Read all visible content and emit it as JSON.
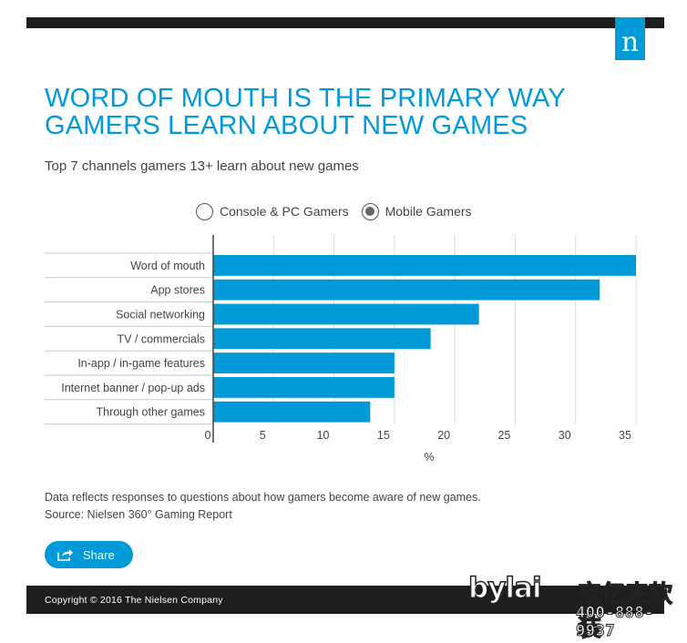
{
  "brand": {
    "logo_letter": "n",
    "accent": "#009ad8",
    "bar_color": "#009ad8"
  },
  "header": {
    "title_line1": "WORD OF MOUTH IS THE PRIMARY WAY",
    "title_line2": "GAMERS LEARN ABOUT NEW GAMES",
    "subtitle": "Top 7 channels gamers 13+ learn about new games"
  },
  "legend": {
    "options": [
      {
        "label": "Console & PC Gamers",
        "selected": false
      },
      {
        "label": "Mobile Gamers",
        "selected": true
      }
    ]
  },
  "chart_data": {
    "type": "bar",
    "orientation": "horizontal",
    "series": [
      {
        "name": "Mobile Gamers",
        "values": [
          35,
          32,
          22,
          18,
          15,
          15,
          13
        ]
      }
    ],
    "categories": [
      "Word of mouth",
      "App stores",
      "Social networking",
      "TV / commercials",
      "In-app / in-game features",
      "Internet banner / pop-up ads",
      "Through other games"
    ],
    "xlabel": "%",
    "xlim": [
      0,
      35
    ],
    "xticks": [
      "0",
      "5",
      "10",
      "15",
      "20",
      "25",
      "30",
      "35"
    ],
    "grid": true
  },
  "notes": {
    "line1": "Data reflects responses to questions about how gamers become aware of new games.",
    "line2": "Source: Nielsen 360° Gaming Report"
  },
  "share": {
    "label": "Share"
  },
  "footer": {
    "copyright": "Copyright © 2016 The Nielsen Company"
  },
  "watermark": {
    "brand": "bylai",
    "cn": "宝亿来软装",
    "phone": "400-888-9937"
  }
}
